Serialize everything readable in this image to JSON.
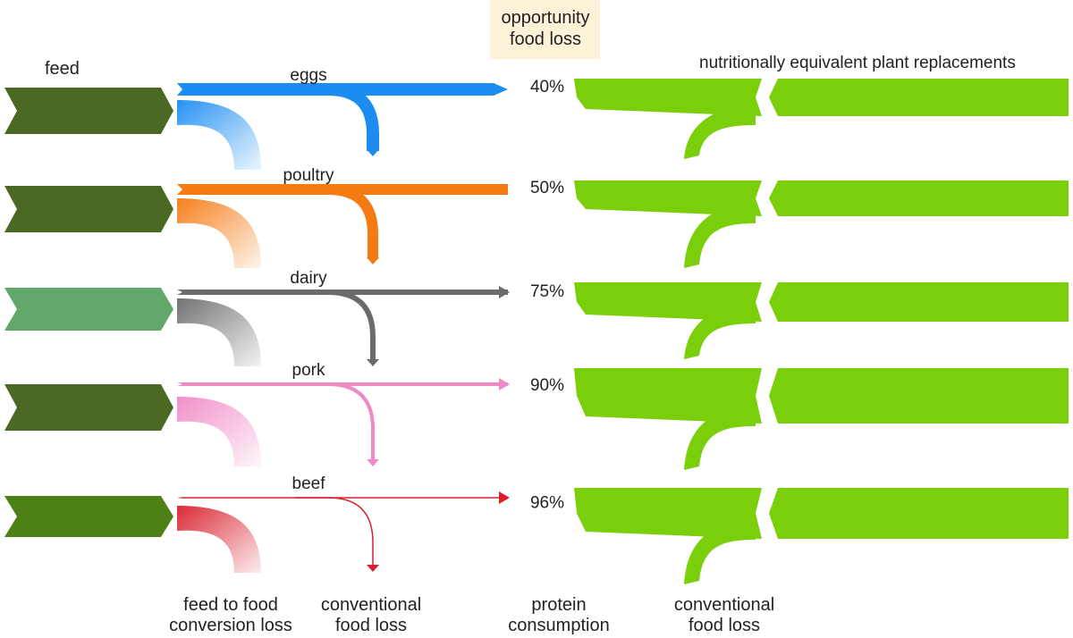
{
  "headers": {
    "feed": "feed",
    "opportunity_loss": "opportunity\nfood loss",
    "plant_replacements": "nutritionally equivalent plant replacements"
  },
  "footers": {
    "conversion_loss": "feed to food\nconversion loss",
    "conventional_loss_animal": "conventional\nfood loss",
    "protein_consumption": "protein\nconsumption",
    "conventional_loss_plant": "conventional\nfood loss"
  },
  "rows": [
    {
      "name": "eggs",
      "opportunity_food_loss": "40%",
      "color": "#1a8cf2",
      "feed_color": "#4a6a24"
    },
    {
      "name": "poultry",
      "opportunity_food_loss": "50%",
      "color": "#f57a12",
      "feed_color": "#4a6a24"
    },
    {
      "name": "dairy",
      "opportunity_food_loss": "75%",
      "color": "#6b6b6b",
      "feed_color": "#62a86a"
    },
    {
      "name": "pork",
      "opportunity_food_loss": "90%",
      "color": "#f08ac6",
      "feed_color": "#4a6a24"
    },
    {
      "name": "beef",
      "opportunity_food_loss": "96%",
      "color": "#d8202c",
      "feed_color": "#4d8017"
    }
  ],
  "colors": {
    "plant_green": "#7acf0a",
    "highlight_box": "#fbf2d7"
  }
}
